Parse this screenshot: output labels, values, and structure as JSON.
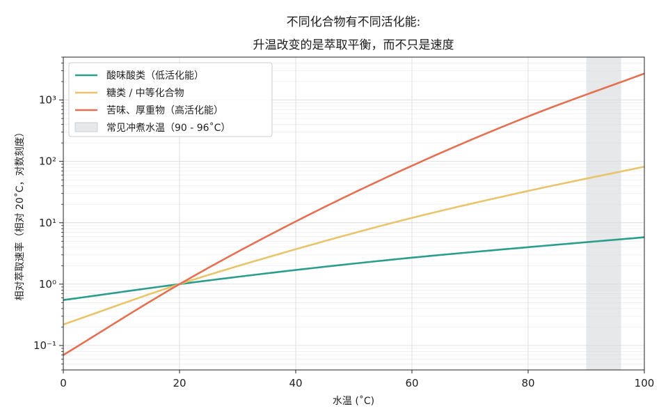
{
  "chart_data": {
    "type": "line",
    "title_lines": [
      "不同化合物有不同活化能:",
      "升温改变的是萃取平衡，而不只是速度"
    ],
    "xlabel": "水温 (˚C)",
    "ylabel": "相对萃取速率（相对 20˚C，对数刻度）",
    "xlim": [
      0,
      100
    ],
    "ylim": [
      0.04,
      5000
    ],
    "yscale": "log",
    "x_ticks": [
      0,
      20,
      40,
      60,
      80,
      100
    ],
    "y_ticks": [
      {
        "value": 0.1,
        "label": "10⁻¹"
      },
      {
        "value": 1,
        "label": "10⁰"
      },
      {
        "value": 10,
        "label": "10¹"
      },
      {
        "value": 100,
        "label": "10²"
      },
      {
        "value": 1000,
        "label": "10³"
      }
    ],
    "grid": true,
    "legend_position": "top-left",
    "shaded_region": {
      "x": [
        90,
        96
      ],
      "label": "常见冲煮水温（90 - 96˚C）",
      "color": "#d6d9dc"
    },
    "series": [
      {
        "name": "酸味酸类（低活化能）",
        "color": "#2a9d8f",
        "x": [
          0,
          20,
          40,
          60,
          80,
          100
        ],
        "values": [
          0.55,
          1.0,
          1.7,
          2.7,
          4.0,
          5.8
        ]
      },
      {
        "name": "糖类 / 中等化合物",
        "color": "#e9c46a",
        "x": [
          0,
          20,
          40,
          60,
          80,
          100
        ],
        "values": [
          0.22,
          1.0,
          3.7,
          12,
          33,
          82
        ]
      },
      {
        "name": "苦味、厚重物（高活化能）",
        "color": "#e76f51",
        "x": [
          0,
          20,
          40,
          60,
          80,
          100
        ],
        "values": [
          0.07,
          1.0,
          10.5,
          85,
          540,
          2700
        ]
      }
    ]
  }
}
